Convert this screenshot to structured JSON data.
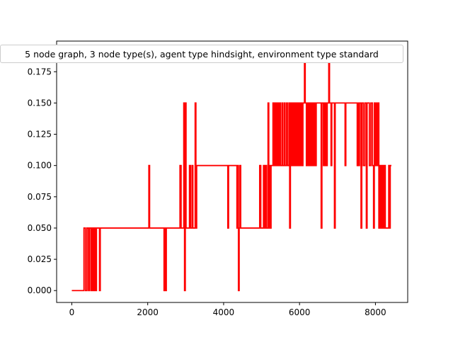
{
  "chart_data": {
    "type": "line",
    "title": "5 node graph, 3 node type(s), agent type hindsight, environment type standard",
    "xlabel": "",
    "ylabel": "",
    "xlim": [
      -400,
      8850
    ],
    "ylim": [
      -0.0095,
      0.1995
    ],
    "xticks": [
      0,
      2000,
      4000,
      6000,
      8000
    ],
    "xtick_labels": [
      "0",
      "2000",
      "4000",
      "6000",
      "8000"
    ],
    "yticks": [
      0.0,
      0.025,
      0.05,
      0.075,
      0.1,
      0.125,
      0.15,
      0.175
    ],
    "ytick_labels": [
      "0.000",
      "0.025",
      "0.050",
      "0.075",
      "0.100",
      "0.125",
      "0.150",
      "0.175"
    ],
    "grid": false,
    "legend": "none",
    "series": [
      {
        "color": "#ff0000",
        "points": [
          [
            0,
            0.0
          ],
          [
            320,
            0.0
          ],
          [
            320,
            0.05
          ],
          [
            360,
            0.05
          ],
          [
            360,
            0.0
          ],
          [
            400,
            0.0
          ],
          [
            400,
            0.05
          ],
          [
            440,
            0.05
          ],
          [
            440,
            0.0
          ],
          [
            460,
            0.0
          ],
          [
            460,
            0.05
          ],
          [
            500,
            0.05
          ],
          [
            500,
            0.0
          ],
          [
            530,
            0.0
          ],
          [
            530,
            0.05
          ],
          [
            560,
            0.05
          ],
          [
            560,
            0.0
          ],
          [
            590,
            0.0
          ],
          [
            590,
            0.05
          ],
          [
            620,
            0.05
          ],
          [
            620,
            0.0
          ],
          [
            650,
            0.0
          ],
          [
            650,
            0.05
          ],
          [
            730,
            0.05
          ],
          [
            730,
            0.0
          ],
          [
            750,
            0.0
          ],
          [
            750,
            0.05
          ],
          [
            2030,
            0.05
          ],
          [
            2030,
            0.1
          ],
          [
            2050,
            0.1
          ],
          [
            2050,
            0.05
          ],
          [
            2430,
            0.05
          ],
          [
            2430,
            0.0
          ],
          [
            2450,
            0.0
          ],
          [
            2450,
            0.05
          ],
          [
            2470,
            0.05
          ],
          [
            2470,
            0.0
          ],
          [
            2490,
            0.0
          ],
          [
            2490,
            0.05
          ],
          [
            2850,
            0.05
          ],
          [
            2850,
            0.1
          ],
          [
            2880,
            0.1
          ],
          [
            2880,
            0.05
          ],
          [
            2950,
            0.05
          ],
          [
            2950,
            0.15
          ],
          [
            2970,
            0.15
          ],
          [
            2970,
            0.0
          ],
          [
            2990,
            0.0
          ],
          [
            2990,
            0.15
          ],
          [
            3010,
            0.15
          ],
          [
            3010,
            0.05
          ],
          [
            3100,
            0.05
          ],
          [
            3100,
            0.1
          ],
          [
            3130,
            0.1
          ],
          [
            3130,
            0.05
          ],
          [
            3170,
            0.05
          ],
          [
            3170,
            0.1
          ],
          [
            3190,
            0.1
          ],
          [
            3190,
            0.05
          ],
          [
            3250,
            0.05
          ],
          [
            3250,
            0.15
          ],
          [
            3270,
            0.15
          ],
          [
            3270,
            0.05
          ],
          [
            3290,
            0.05
          ],
          [
            3290,
            0.1
          ],
          [
            4110,
            0.1
          ],
          [
            4110,
            0.05
          ],
          [
            4130,
            0.05
          ],
          [
            4130,
            0.1
          ],
          [
            4350,
            0.1
          ],
          [
            4350,
            0.05
          ],
          [
            4370,
            0.05
          ],
          [
            4370,
            0.1
          ],
          [
            4390,
            0.1
          ],
          [
            4390,
            0.0
          ],
          [
            4410,
            0.0
          ],
          [
            4410,
            0.05
          ],
          [
            4430,
            0.05
          ],
          [
            4430,
            0.1
          ],
          [
            4450,
            0.1
          ],
          [
            4450,
            0.05
          ],
          [
            4950,
            0.05
          ],
          [
            4950,
            0.1
          ],
          [
            4980,
            0.1
          ],
          [
            4980,
            0.05
          ],
          [
            5050,
            0.05
          ],
          [
            5050,
            0.1
          ],
          [
            5080,
            0.1
          ],
          [
            5080,
            0.05
          ],
          [
            5100,
            0.05
          ],
          [
            5100,
            0.1
          ],
          [
            5130,
            0.1
          ],
          [
            5130,
            0.05
          ],
          [
            5170,
            0.05
          ],
          [
            5170,
            0.15
          ],
          [
            5190,
            0.15
          ],
          [
            5190,
            0.05
          ],
          [
            5210,
            0.05
          ],
          [
            5210,
            0.1
          ],
          [
            5230,
            0.1
          ],
          [
            5230,
            0.05
          ],
          [
            5250,
            0.05
          ],
          [
            5250,
            0.1
          ],
          [
            5300,
            0.1
          ],
          [
            5300,
            0.15
          ],
          [
            5320,
            0.15
          ],
          [
            5320,
            0.1
          ],
          [
            5350,
            0.1
          ],
          [
            5350,
            0.15
          ],
          [
            5370,
            0.15
          ],
          [
            5370,
            0.1
          ],
          [
            5400,
            0.1
          ],
          [
            5400,
            0.15
          ],
          [
            5420,
            0.15
          ],
          [
            5420,
            0.1
          ],
          [
            5440,
            0.1
          ],
          [
            5440,
            0.15
          ],
          [
            5460,
            0.15
          ],
          [
            5460,
            0.1
          ],
          [
            5480,
            0.1
          ],
          [
            5480,
            0.15
          ],
          [
            5500,
            0.15
          ],
          [
            5500,
            0.1
          ],
          [
            5540,
            0.1
          ],
          [
            5540,
            0.15
          ],
          [
            5560,
            0.15
          ],
          [
            5560,
            0.1
          ],
          [
            5600,
            0.1
          ],
          [
            5600,
            0.15
          ],
          [
            5620,
            0.15
          ],
          [
            5620,
            0.1
          ],
          [
            5660,
            0.1
          ],
          [
            5660,
            0.15
          ],
          [
            5680,
            0.15
          ],
          [
            5680,
            0.1
          ],
          [
            5720,
            0.1
          ],
          [
            5720,
            0.15
          ],
          [
            5740,
            0.15
          ],
          [
            5740,
            0.05
          ],
          [
            5760,
            0.05
          ],
          [
            5760,
            0.15
          ],
          [
            5780,
            0.15
          ],
          [
            5780,
            0.1
          ],
          [
            5800,
            0.1
          ],
          [
            5800,
            0.15
          ],
          [
            5820,
            0.15
          ],
          [
            5820,
            0.1
          ],
          [
            5840,
            0.1
          ],
          [
            5840,
            0.15
          ],
          [
            5860,
            0.15
          ],
          [
            5860,
            0.1
          ],
          [
            5880,
            0.1
          ],
          [
            5880,
            0.15
          ],
          [
            5900,
            0.15
          ],
          [
            5900,
            0.1
          ],
          [
            5920,
            0.1
          ],
          [
            5920,
            0.15
          ],
          [
            5940,
            0.15
          ],
          [
            5940,
            0.1
          ],
          [
            5960,
            0.1
          ],
          [
            5960,
            0.15
          ],
          [
            5980,
            0.15
          ],
          [
            5980,
            0.1
          ],
          [
            6000,
            0.1
          ],
          [
            6000,
            0.15
          ],
          [
            6020,
            0.15
          ],
          [
            6020,
            0.1
          ],
          [
            6040,
            0.1
          ],
          [
            6040,
            0.15
          ],
          [
            6060,
            0.15
          ],
          [
            6060,
            0.1
          ],
          [
            6090,
            0.1
          ],
          [
            6090,
            0.15
          ],
          [
            6130,
            0.15
          ],
          [
            6130,
            0.19
          ],
          [
            6150,
            0.19
          ],
          [
            6150,
            0.15
          ],
          [
            6180,
            0.15
          ],
          [
            6180,
            0.1
          ],
          [
            6200,
            0.1
          ],
          [
            6200,
            0.15
          ],
          [
            6220,
            0.15
          ],
          [
            6220,
            0.1
          ],
          [
            6240,
            0.1
          ],
          [
            6240,
            0.15
          ],
          [
            6260,
            0.15
          ],
          [
            6260,
            0.1
          ],
          [
            6280,
            0.1
          ],
          [
            6280,
            0.15
          ],
          [
            6300,
            0.15
          ],
          [
            6300,
            0.1
          ],
          [
            6320,
            0.1
          ],
          [
            6320,
            0.15
          ],
          [
            6340,
            0.15
          ],
          [
            6340,
            0.1
          ],
          [
            6360,
            0.1
          ],
          [
            6360,
            0.15
          ],
          [
            6380,
            0.15
          ],
          [
            6380,
            0.1
          ],
          [
            6400,
            0.1
          ],
          [
            6400,
            0.15
          ],
          [
            6420,
            0.15
          ],
          [
            6420,
            0.1
          ],
          [
            6440,
            0.1
          ],
          [
            6440,
            0.15
          ],
          [
            6570,
            0.15
          ],
          [
            6570,
            0.05
          ],
          [
            6590,
            0.05
          ],
          [
            6590,
            0.15
          ],
          [
            6630,
            0.15
          ],
          [
            6630,
            0.1
          ],
          [
            6650,
            0.1
          ],
          [
            6650,
            0.15
          ],
          [
            6670,
            0.15
          ],
          [
            6670,
            0.1
          ],
          [
            6690,
            0.1
          ],
          [
            6690,
            0.15
          ],
          [
            6710,
            0.15
          ],
          [
            6710,
            0.1
          ],
          [
            6730,
            0.1
          ],
          [
            6730,
            0.15
          ],
          [
            6770,
            0.15
          ],
          [
            6770,
            0.19
          ],
          [
            6790,
            0.19
          ],
          [
            6790,
            0.15
          ],
          [
            6830,
            0.15
          ],
          [
            6830,
            0.1
          ],
          [
            6850,
            0.1
          ],
          [
            6850,
            0.15
          ],
          [
            6920,
            0.15
          ],
          [
            6920,
            0.05
          ],
          [
            6940,
            0.05
          ],
          [
            6940,
            0.15
          ],
          [
            7200,
            0.15
          ],
          [
            7200,
            0.1
          ],
          [
            7220,
            0.1
          ],
          [
            7220,
            0.15
          ],
          [
            7520,
            0.15
          ],
          [
            7520,
            0.1
          ],
          [
            7540,
            0.1
          ],
          [
            7540,
            0.15
          ],
          [
            7560,
            0.15
          ],
          [
            7560,
            0.1
          ],
          [
            7580,
            0.1
          ],
          [
            7580,
            0.15
          ],
          [
            7620,
            0.15
          ],
          [
            7620,
            0.05
          ],
          [
            7640,
            0.05
          ],
          [
            7640,
            0.15
          ],
          [
            7680,
            0.15
          ],
          [
            7680,
            0.1
          ],
          [
            7720,
            0.1
          ],
          [
            7720,
            0.15
          ],
          [
            7760,
            0.15
          ],
          [
            7760,
            0.05
          ],
          [
            7780,
            0.05
          ],
          [
            7780,
            0.15
          ],
          [
            7840,
            0.15
          ],
          [
            7840,
            0.1
          ],
          [
            7880,
            0.1
          ],
          [
            7880,
            0.15
          ],
          [
            7920,
            0.15
          ],
          [
            7920,
            0.1
          ],
          [
            7950,
            0.1
          ],
          [
            7950,
            0.05
          ],
          [
            7970,
            0.05
          ],
          [
            7970,
            0.15
          ],
          [
            8000,
            0.15
          ],
          [
            8000,
            0.1
          ],
          [
            8020,
            0.1
          ],
          [
            8020,
            0.15
          ],
          [
            8050,
            0.15
          ],
          [
            8050,
            0.1
          ],
          [
            8070,
            0.1
          ],
          [
            8070,
            0.15
          ],
          [
            8090,
            0.15
          ],
          [
            8090,
            0.05
          ],
          [
            8110,
            0.05
          ],
          [
            8110,
            0.1
          ],
          [
            8130,
            0.1
          ],
          [
            8130,
            0.05
          ],
          [
            8150,
            0.05
          ],
          [
            8150,
            0.1
          ],
          [
            8170,
            0.1
          ],
          [
            8170,
            0.05
          ],
          [
            8190,
            0.05
          ],
          [
            8190,
            0.1
          ],
          [
            8210,
            0.1
          ],
          [
            8210,
            0.05
          ],
          [
            8230,
            0.05
          ],
          [
            8230,
            0.1
          ],
          [
            8260,
            0.1
          ],
          [
            8260,
            0.05
          ],
          [
            8350,
            0.05
          ],
          [
            8350,
            0.1
          ],
          [
            8370,
            0.1
          ],
          [
            8370,
            0.05
          ],
          [
            8390,
            0.05
          ],
          [
            8390,
            0.1
          ],
          [
            8420,
            0.1
          ]
        ]
      }
    ]
  }
}
